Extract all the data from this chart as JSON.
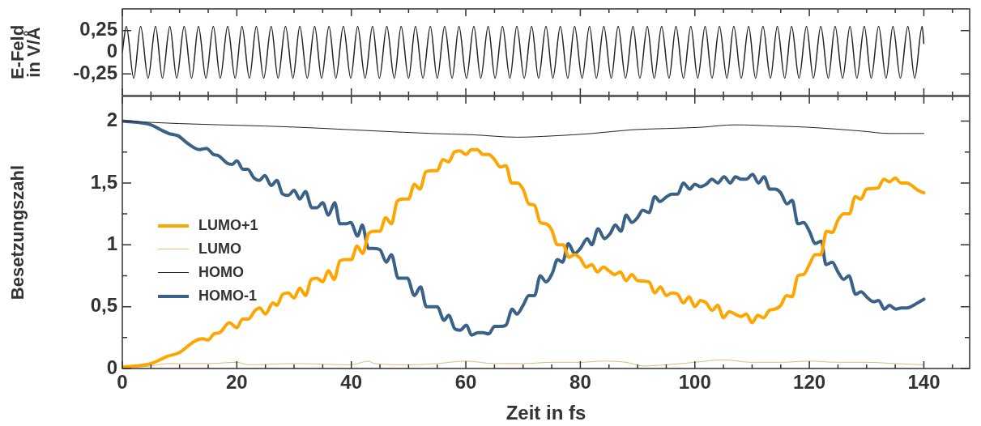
{
  "chart_data": [
    {
      "type": "line",
      "ylabel": "E-Feld in V/Å",
      "tick_labels": "y",
      "xlim": [
        0,
        148
      ],
      "ylim": [
        -0.5,
        0.5
      ],
      "xticks": [
        0,
        {
          "value": 5,
          "label": null
        },
        {
          "value": 10,
          "label": null
        },
        {
          "value": 15,
          "label": null
        },
        20,
        {
          "value": 25,
          "label": null
        },
        {
          "value": 30,
          "label": null
        },
        {
          "value": 35,
          "label": null
        },
        40,
        {
          "value": 45,
          "label": null
        },
        {
          "value": 50,
          "label": null
        },
        {
          "value": 55,
          "label": null
        },
        60,
        {
          "value": 65,
          "label": null
        },
        {
          "value": 70,
          "label": null
        },
        {
          "value": 75,
          "label": null
        },
        80,
        {
          "value": 85,
          "label": null
        },
        {
          "value": 90,
          "label": null
        },
        {
          "value": 95,
          "label": null
        },
        100,
        {
          "value": 105,
          "label": null
        },
        {
          "value": 110,
          "label": null
        },
        {
          "value": 115,
          "label": null
        },
        120,
        {
          "value": 125,
          "label": null
        },
        {
          "value": 130,
          "label": null
        },
        {
          "value": 135,
          "label": null
        },
        140,
        {
          "value": 145,
          "label": null
        }
      ],
      "yticks": [
        {
          "value": -0.25,
          "label": "-0,25"
        },
        0,
        {
          "value": 0.25,
          "label": "0,25"
        }
      ],
      "series": [
        {
          "color": "#222222",
          "x": [
            0,
            0.7,
            2.0,
            3.2,
            4.5,
            5.8,
            7.0,
            8.3,
            9.5,
            10.8,
            12.1,
            13.3,
            14.6,
            15.9,
            17.1,
            18.4,
            19.7,
            20.9,
            22.2,
            23.4,
            24.7,
            26.0,
            27.2,
            28.5,
            29.8,
            31.0,
            32.3,
            33.6,
            34.8,
            36.1,
            37.3,
            38.6,
            39.9,
            41.1,
            42.4,
            43.7,
            44.9,
            46.2,
            47.5,
            48.7,
            50.0,
            51.2,
            52.5,
            53.8,
            55.0,
            56.3,
            57.6,
            58.8,
            60.1,
            61.4,
            62.6,
            63.9,
            65.1,
            66.4,
            67.7,
            68.9,
            70.2,
            71.5,
            72.7,
            74.0,
            75.2,
            76.5,
            77.8,
            79.0,
            80.3,
            81.6,
            82.8,
            84.1,
            85.4,
            86.6,
            87.9,
            89.2,
            90.4,
            91.7,
            92.9,
            94.2,
            95.5,
            96.7,
            98.0,
            99.3,
            100.5,
            101.8,
            103.0,
            104.3,
            105.6,
            106.8,
            108.1,
            109.4,
            110.6,
            111.9,
            113.2,
            114.4,
            115.7,
            116.9,
            118.2,
            119.5,
            120.7,
            122.0,
            123.3,
            124.5,
            125.8,
            127.1,
            128.3,
            129.6,
            130.8,
            132.1,
            133.4,
            134.6,
            135.9,
            137.2,
            138.4,
            139.7,
            140
          ],
          "values": [
            0,
            0.3,
            -0.3,
            0.3,
            -0.3,
            0.3,
            -0.3,
            0.3,
            -0.3,
            0.3,
            -0.3,
            0.3,
            -0.3,
            0.3,
            -0.3,
            0.3,
            -0.3,
            0.3,
            -0.3,
            0.3,
            -0.3,
            0.3,
            -0.3,
            0.3,
            -0.3,
            0.3,
            -0.3,
            0.3,
            -0.3,
            0.3,
            -0.3,
            0.3,
            -0.3,
            0.3,
            -0.3,
            0.3,
            -0.3,
            0.3,
            -0.3,
            0.3,
            -0.3,
            0.3,
            -0.3,
            0.3,
            -0.3,
            0.3,
            -0.3,
            0.3,
            -0.3,
            0.3,
            -0.3,
            0.3,
            -0.3,
            0.3,
            -0.3,
            0.3,
            -0.3,
            0.3,
            -0.3,
            0.3,
            -0.3,
            0.3,
            -0.3,
            0.3,
            -0.3,
            0.3,
            -0.3,
            0.3,
            -0.3,
            0.3,
            -0.3,
            0.3,
            -0.3,
            0.3,
            -0.3,
            0.3,
            -0.3,
            0.3,
            -0.3,
            0.3,
            -0.3,
            0.3,
            -0.3,
            0.3,
            -0.3,
            0.3,
            -0.3,
            0.3,
            -0.3,
            0.3,
            -0.3,
            0.3,
            -0.3,
            0.3,
            -0.3,
            0.3,
            -0.3,
            0.3,
            -0.3,
            0.3,
            -0.3,
            0.3,
            -0.3,
            0.3,
            -0.3,
            0.3,
            -0.3,
            0.3,
            -0.3,
            0.3,
            -0.3,
            0.3,
            0.1
          ]
        }
      ]
    },
    {
      "type": "line",
      "xlabel": "Zeit in fs",
      "ylabel": "Besetzungszahl",
      "legend": "left",
      "xlim": [
        0,
        148
      ],
      "ylim": [
        0,
        2.2
      ],
      "xticks": [
        0,
        {
          "value": 5,
          "label": null
        },
        {
          "value": 10,
          "label": null
        },
        {
          "value": 15,
          "label": null
        },
        20,
        {
          "value": 25,
          "label": null
        },
        {
          "value": 30,
          "label": null
        },
        {
          "value": 35,
          "label": null
        },
        40,
        {
          "value": 45,
          "label": null
        },
        {
          "value": 50,
          "label": null
        },
        {
          "value": 55,
          "label": null
        },
        60,
        {
          "value": 65,
          "label": null
        },
        {
          "value": 70,
          "label": null
        },
        {
          "value": 75,
          "label": null
        },
        80,
        {
          "value": 85,
          "label": null
        },
        {
          "value": 90,
          "label": null
        },
        {
          "value": 95,
          "label": null
        },
        100,
        {
          "value": 105,
          "label": null
        },
        {
          "value": 110,
          "label": null
        },
        {
          "value": 115,
          "label": null
        },
        120,
        {
          "value": 125,
          "label": null
        },
        {
          "value": 130,
          "label": null
        },
        {
          "value": 135,
          "label": null
        },
        140,
        {
          "value": 145,
          "label": null
        }
      ],
      "yticks": [
        0,
        {
          "value": 0.25,
          "label": null
        },
        {
          "value": 0.5,
          "label": "0,5"
        },
        {
          "value": 0.75,
          "label": null
        },
        1,
        {
          "value": 1.25,
          "label": null
        },
        {
          "value": 1.5,
          "label": "1,5"
        },
        {
          "value": 1.75,
          "label": null
        },
        2
      ],
      "series": [
        {
          "name": "LUMO+1",
          "color": "#ffa500",
          "x": [
            0,
            5,
            8,
            10,
            12.6,
            14,
            15,
            16,
            17,
            18.7,
            20,
            21,
            22,
            23.2,
            24,
            25,
            26.3,
            27,
            28,
            29,
            30,
            31,
            32,
            33,
            34,
            35,
            36,
            37,
            38,
            39,
            40,
            41,
            42,
            43,
            44,
            45,
            46,
            47,
            48,
            49,
            50,
            51,
            52,
            53,
            54,
            55,
            56,
            57,
            58,
            59,
            60,
            61,
            62,
            63,
            64,
            65,
            66,
            67,
            68,
            69,
            70,
            71,
            72,
            73,
            74,
            75,
            76,
            77,
            78,
            79,
            80,
            81,
            82,
            83,
            84,
            85,
            86,
            87,
            88,
            89,
            90,
            92,
            93,
            94,
            95,
            96,
            97,
            98,
            99,
            100,
            101,
            102,
            103,
            104,
            105,
            106,
            107,
            108,
            109,
            110,
            111,
            112,
            113,
            114,
            115,
            116,
            117,
            118,
            119,
            120,
            121,
            122,
            123,
            124,
            125,
            126,
            127,
            128,
            129,
            130,
            132,
            133,
            134,
            135,
            136,
            137,
            139,
            140
          ],
          "values": [
            0.01,
            0.04,
            0.1,
            0.13,
            0.22,
            0.24,
            0.23,
            0.28,
            0.29,
            0.37,
            0.33,
            0.4,
            0.4,
            0.47,
            0.49,
            0.44,
            0.53,
            0.51,
            0.6,
            0.61,
            0.57,
            0.65,
            0.59,
            0.72,
            0.73,
            0.7,
            0.79,
            0.72,
            0.87,
            0.88,
            0.88,
            0.99,
            0.93,
            1.09,
            1.11,
            1.11,
            1.22,
            1.17,
            1.35,
            1.37,
            1.37,
            1.49,
            1.45,
            1.59,
            1.6,
            1.6,
            1.69,
            1.67,
            1.75,
            1.76,
            1.73,
            1.77,
            1.77,
            1.73,
            1.73,
            1.69,
            1.63,
            1.64,
            1.5,
            1.5,
            1.45,
            1.33,
            1.32,
            1.18,
            1.17,
            1.12,
            1.0,
            1.0,
            0.9,
            0.92,
            0.89,
            0.82,
            0.84,
            0.78,
            0.82,
            0.79,
            0.76,
            0.78,
            0.71,
            0.76,
            0.71,
            0.7,
            0.61,
            0.66,
            0.59,
            0.61,
            0.6,
            0.53,
            0.58,
            0.5,
            0.55,
            0.53,
            0.47,
            0.51,
            0.41,
            0.46,
            0.44,
            0.42,
            0.44,
            0.37,
            0.43,
            0.41,
            0.47,
            0.48,
            0.51,
            0.59,
            0.58,
            0.75,
            0.76,
            0.84,
            0.92,
            0.92,
            1.11,
            1.1,
            1.2,
            1.25,
            1.25,
            1.39,
            1.37,
            1.45,
            1.46,
            1.53,
            1.51,
            1.54,
            1.5,
            1.5,
            1.44,
            1.42
          ]
        },
        {
          "name": "LUMO",
          "color": "#dfb978",
          "x": [
            0,
            5,
            8,
            15,
            20,
            22,
            30,
            40,
            43,
            44,
            50,
            55,
            60,
            65,
            70,
            75,
            80,
            84,
            88,
            91,
            95,
            100,
            105,
            110,
            115,
            120,
            125,
            130,
            135,
            140
          ],
          "values": [
            0.0,
            0.02,
            0.04,
            0.04,
            0.05,
            0.03,
            0.04,
            0.03,
            0.06,
            0.04,
            0.03,
            0.04,
            0.06,
            0.04,
            0.04,
            0.05,
            0.05,
            0.06,
            0.05,
            0.02,
            0.03,
            0.05,
            0.07,
            0.05,
            0.05,
            0.06,
            0.05,
            0.05,
            0.04,
            0.03
          ]
        },
        {
          "name": "HOMO",
          "color": "#222222",
          "x": [
            0,
            10,
            17,
            25,
            31,
            40,
            49,
            54,
            61,
            69,
            75,
            82,
            89,
            95,
            101,
            107,
            114,
            120,
            129,
            134,
            140
          ],
          "values": [
            2.0,
            1.98,
            1.97,
            1.96,
            1.95,
            1.93,
            1.91,
            1.9,
            1.89,
            1.87,
            1.88,
            1.9,
            1.93,
            1.94,
            1.95,
            1.97,
            1.96,
            1.95,
            1.92,
            1.9,
            1.9
          ]
        },
        {
          "name": "HOMO-1",
          "color": "#3a6186",
          "x": [
            0,
            5,
            6.7,
            8.1,
            9.8,
            11.4,
            13.5,
            14.7,
            15.9,
            16.8,
            18.3,
            19.2,
            20,
            21.1,
            21.9,
            23,
            23.9,
            24.9,
            26,
            27,
            28,
            29,
            30,
            31,
            32,
            33.1,
            34,
            35,
            36,
            37.1,
            38,
            39,
            39.9,
            41.1,
            41.9,
            43,
            43.9,
            45,
            46.1,
            47,
            48.2,
            49.8,
            51,
            52.1,
            53.1,
            54.1,
            55,
            56.2,
            57,
            58.1,
            59,
            60.1,
            61,
            62.1,
            63,
            64,
            65,
            66,
            67,
            68.1,
            68.9,
            70,
            71,
            72,
            73,
            74,
            75.1,
            76,
            76.9,
            77.9,
            79,
            80,
            81.2,
            82,
            83.1,
            84.2,
            85.2,
            86.1,
            87.1,
            88,
            89,
            90,
            90.9,
            92,
            93,
            93.9,
            95.1,
            96,
            97,
            98,
            99.1,
            100,
            101,
            102,
            103,
            104,
            105.1,
            106.2,
            107.1,
            108.1,
            109,
            110.1,
            111.1,
            112.1,
            113.1,
            114,
            115,
            116.1,
            117,
            118,
            119,
            120.1,
            121,
            122.1,
            122.9,
            124,
            125,
            126,
            126.9,
            128.1,
            129,
            130.2,
            131.2,
            132.1,
            133.1,
            134,
            135.1,
            136.1,
            137,
            138.9,
            140
          ],
          "values": [
            2.0,
            1.97,
            1.93,
            1.9,
            1.88,
            1.82,
            1.77,
            1.78,
            1.73,
            1.72,
            1.66,
            1.65,
            1.68,
            1.61,
            1.61,
            1.54,
            1.52,
            1.56,
            1.48,
            1.52,
            1.41,
            1.4,
            1.44,
            1.37,
            1.43,
            1.3,
            1.3,
            1.34,
            1.24,
            1.34,
            1.17,
            1.17,
            1.18,
            1.07,
            1.16,
            0.97,
            0.97,
            0.96,
            0.86,
            0.92,
            0.73,
            0.73,
            0.59,
            0.66,
            0.5,
            0.5,
            0.5,
            0.39,
            0.43,
            0.32,
            0.31,
            0.35,
            0.27,
            0.29,
            0.29,
            0.28,
            0.34,
            0.34,
            0.35,
            0.48,
            0.44,
            0.51,
            0.59,
            0.59,
            0.75,
            0.7,
            0.77,
            0.88,
            0.86,
            1.01,
            0.93,
            0.97,
            1.05,
            1.0,
            1.13,
            1.05,
            1.09,
            1.16,
            1.11,
            1.24,
            1.18,
            1.22,
            1.28,
            1.26,
            1.39,
            1.35,
            1.39,
            1.41,
            1.41,
            1.5,
            1.45,
            1.49,
            1.47,
            1.49,
            1.53,
            1.5,
            1.55,
            1.5,
            1.55,
            1.53,
            1.53,
            1.57,
            1.5,
            1.55,
            1.45,
            1.45,
            1.42,
            1.33,
            1.36,
            1.17,
            1.18,
            1.1,
            1.01,
            1.03,
            0.84,
            0.86,
            0.78,
            0.72,
            0.75,
            0.6,
            0.62,
            0.57,
            0.54,
            0.55,
            0.48,
            0.51,
            0.48,
            0.49,
            0.49,
            0.53,
            0.56
          ]
        }
      ]
    }
  ]
}
